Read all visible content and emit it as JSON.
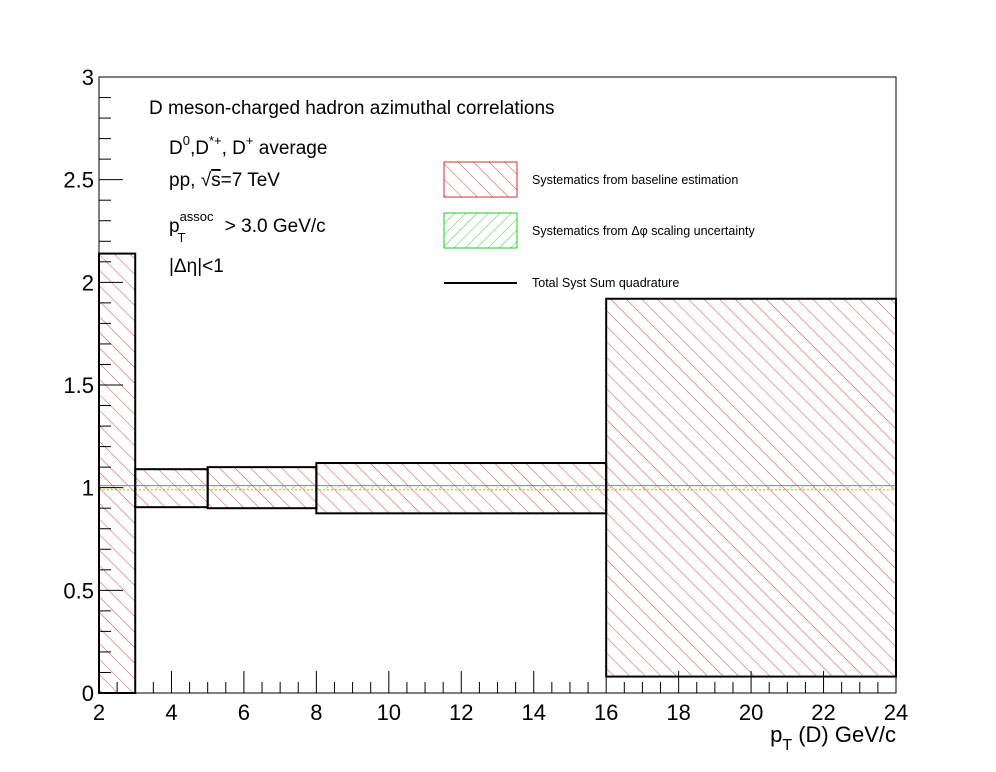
{
  "chart_data": {
    "type": "area",
    "xlim": [
      2,
      24
    ],
    "ylim": [
      0,
      3
    ],
    "x_ticks": [
      2,
      4,
      6,
      8,
      10,
      12,
      14,
      16,
      18,
      20,
      22,
      24
    ],
    "y_ticks": [
      0,
      0.5,
      1,
      1.5,
      2,
      2.5,
      3
    ],
    "x_tick_labels": [
      "2",
      "4",
      "6",
      "8",
      "10",
      "12",
      "14",
      "16",
      "18",
      "20",
      "22",
      "24"
    ],
    "y_tick_labels": [
      "0",
      "0.5",
      "1",
      "1.5",
      "2",
      "2.5",
      "3"
    ],
    "xlabel": "p_T (D) GeV/c",
    "ylabel": "",
    "bins": [
      {
        "x_low": 2,
        "x_high": 3,
        "baseline_low": 0.0,
        "baseline_high": 2.14,
        "total_low": 0.0,
        "total_high": 2.14
      },
      {
        "x_low": 3,
        "x_high": 5,
        "baseline_low": 0.905,
        "baseline_high": 1.09,
        "total_low": 0.905,
        "total_high": 1.09
      },
      {
        "x_low": 5,
        "x_high": 8,
        "baseline_low": 0.9,
        "baseline_high": 1.1,
        "total_low": 0.9,
        "total_high": 1.1
      },
      {
        "x_low": 8,
        "x_high": 16,
        "baseline_low": 0.875,
        "baseline_high": 1.12,
        "total_low": 0.875,
        "total_high": 1.12
      },
      {
        "x_low": 16,
        "x_high": 24,
        "baseline_low": 0.08,
        "baseline_high": 1.92,
        "total_low": 0.08,
        "total_high": 1.92
      }
    ],
    "dphi_band": [
      0.995,
      1.005
    ],
    "series": [
      {
        "name": "Systematics from baseline estimation",
        "style": "hatch",
        "color": "#d03030"
      },
      {
        "name": "Systematics from Δφ scaling uncertainty",
        "style": "hatch",
        "color": "#22cc22"
      },
      {
        "name": "Total Syst Sum quadrature",
        "style": "line",
        "color": "#000000"
      }
    ],
    "legend_position": "top-right",
    "grid": false
  },
  "annotations": {
    "title": "D meson-charged hadron azimuthal correlations",
    "species": "D⁰,D*⁺, D⁺ average",
    "system": "pp, √s=7 TeV",
    "assoc_cut": "p_T^assoc > 3.0 GeV/c",
    "eta_cut": "|Δη|<1"
  }
}
